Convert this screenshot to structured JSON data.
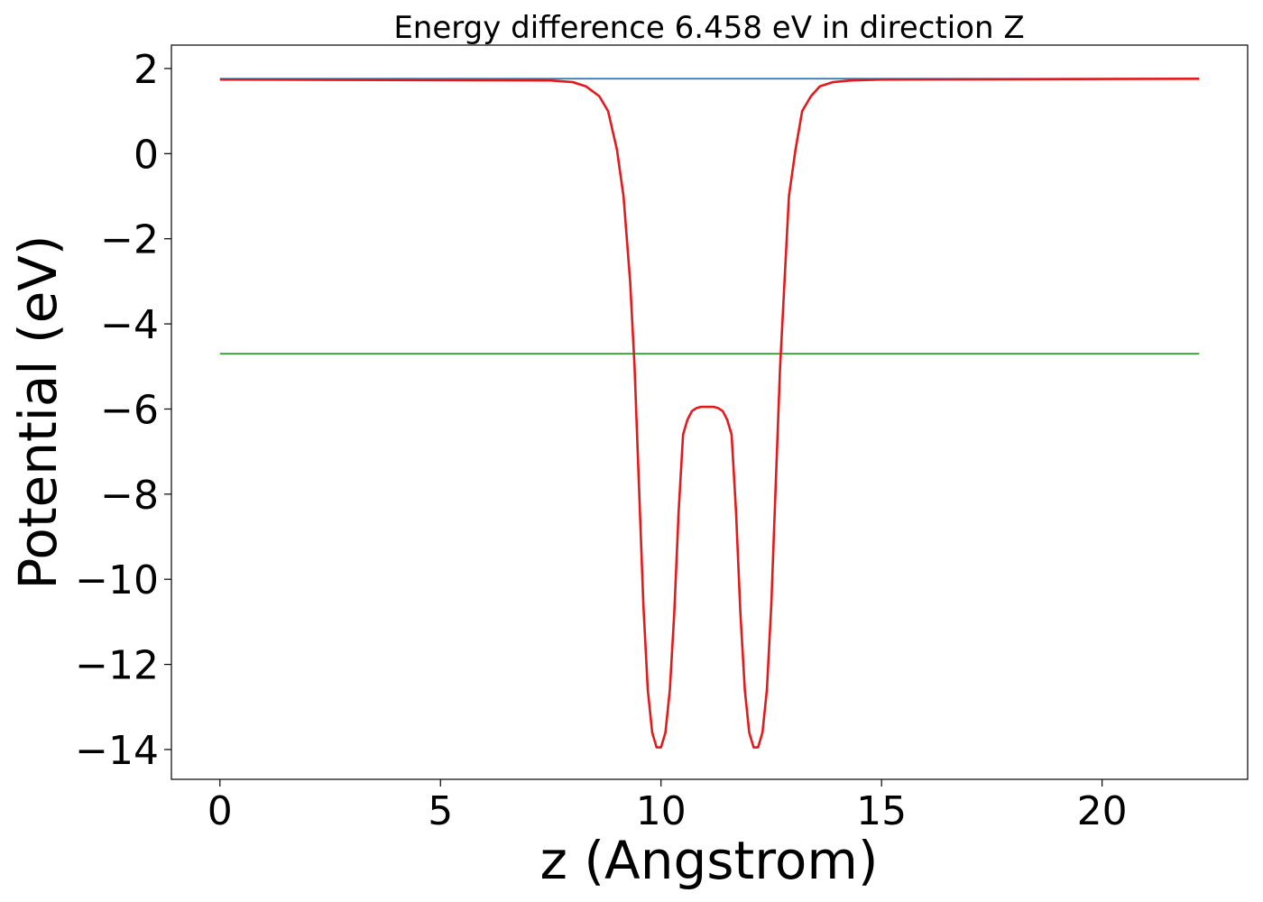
{
  "chart_data": {
    "type": "line",
    "title": "Energy difference 6.458 eV in direction Z",
    "xlabel": "z (Angstrom)",
    "ylabel": "Potential (eV)",
    "xlim": [
      -1.1,
      23.3
    ],
    "ylim": [
      -14.7,
      2.55
    ],
    "xticks": [
      0,
      5,
      10,
      15,
      20
    ],
    "yticks": [
      2,
      0,
      -2,
      -4,
      -6,
      -8,
      -10,
      -12,
      -14
    ],
    "xtick_labels": [
      "0",
      "5",
      "10",
      "15",
      "20"
    ],
    "ytick_labels": [
      "2",
      "0",
      "−2",
      "−4",
      "−6",
      "−8",
      "−10",
      "−12",
      "−14"
    ],
    "grid": false,
    "series": [
      {
        "color": "#1f77b4",
        "x": [
          0,
          22.2
        ],
        "y": [
          1.76,
          1.76
        ]
      },
      {
        "color": "#2ca02c",
        "x": [
          0,
          22.2
        ],
        "y": [
          -4.7,
          -4.7
        ]
      },
      {
        "color": "#e31a1c",
        "x": [
          0,
          7.5,
          8.0,
          8.3,
          8.6,
          8.8,
          9.0,
          9.15,
          9.3,
          9.4,
          9.5,
          9.6,
          9.7,
          9.8,
          9.9,
          10.0,
          10.1,
          10.2,
          10.3,
          10.4,
          10.5,
          10.6,
          10.7,
          10.8,
          10.9,
          11.0,
          11.1,
          11.2,
          11.3,
          11.4,
          11.5,
          11.6,
          11.7,
          11.8,
          11.9,
          12.0,
          12.1,
          12.2,
          12.3,
          12.4,
          12.5,
          12.6,
          12.7,
          12.8,
          12.9,
          13.05,
          13.2,
          13.4,
          13.6,
          13.9,
          14.3,
          15.0,
          22.2
        ],
        "y": [
          1.74,
          1.72,
          1.68,
          1.58,
          1.35,
          1.0,
          0.1,
          -1.0,
          -3.0,
          -5.0,
          -7.8,
          -10.6,
          -12.6,
          -13.6,
          -13.95,
          -13.95,
          -13.6,
          -12.6,
          -10.8,
          -8.4,
          -6.6,
          -6.25,
          -6.05,
          -5.98,
          -5.95,
          -5.95,
          -5.95,
          -5.95,
          -5.98,
          -6.05,
          -6.25,
          -6.6,
          -8.4,
          -10.8,
          -12.6,
          -13.6,
          -13.95,
          -13.95,
          -13.6,
          -12.6,
          -10.6,
          -7.8,
          -5.0,
          -3.0,
          -1.0,
          0.1,
          1.0,
          1.35,
          1.58,
          1.68,
          1.72,
          1.74,
          1.76
        ]
      }
    ]
  }
}
